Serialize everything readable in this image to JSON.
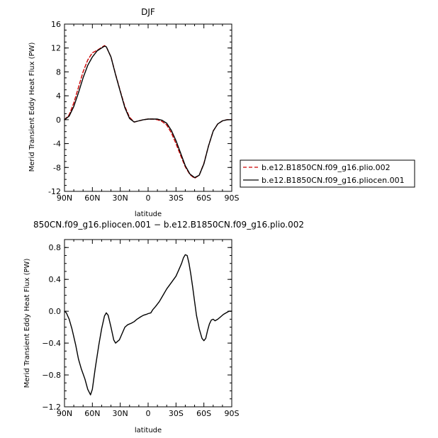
{
  "chart_data": [
    {
      "type": "line",
      "title": "DJF",
      "xlabel": "latitude",
      "ylabel": "Merid Transient Eddy Heat Flux (PW)",
      "xlim": [
        90,
        -90
      ],
      "ylim": [
        -12,
        16
      ],
      "x_ticks": [
        90,
        60,
        30,
        0,
        -30,
        -60,
        -90
      ],
      "x_tick_labels": [
        "90N",
        "60N",
        "30N",
        "0",
        "30S",
        "60S",
        "90S"
      ],
      "y_ticks": [
        -12,
        -8,
        -4,
        0,
        4,
        8,
        12,
        16
      ],
      "y_tick_labels": [
        "-12",
        "-8",
        "-4",
        "0",
        "4",
        "8",
        "12",
        "16"
      ],
      "legend_position": "right",
      "series": [
        {
          "name": "b.e12.B1850CN.f09_g16.plio.002",
          "color": "#cc0000",
          "dash": "dashed",
          "x": [
            90,
            85,
            80,
            75,
            70,
            65,
            60,
            55,
            50,
            47,
            45,
            40,
            35,
            30,
            25,
            20,
            15,
            10,
            5,
            0,
            -5,
            -10,
            -15,
            -20,
            -25,
            -30,
            -35,
            -40,
            -45,
            -50,
            -55,
            -60,
            -65,
            -70,
            -75,
            -80,
            -85,
            -90
          ],
          "y": [
            0,
            0.8,
            2.8,
            5.4,
            8.0,
            10.0,
            11.2,
            11.6,
            12.1,
            12.4,
            12.2,
            10.5,
            7.6,
            4.8,
            2.2,
            0.4,
            -0.4,
            -0.2,
            0.0,
            0.1,
            0.1,
            0.0,
            -0.3,
            -0.9,
            -2.2,
            -4.0,
            -6.0,
            -7.9,
            -9.2,
            -9.8,
            -9.3,
            -7.3,
            -4.4,
            -1.9,
            -0.7,
            -0.2,
            0.0,
            0.0
          ]
        },
        {
          "name": "b.e12.B1850CN.f09_g16.pliocen.001",
          "color": "#000000",
          "dash": "solid",
          "x": [
            90,
            85,
            80,
            75,
            70,
            65,
            60,
            55,
            50,
            47,
            45,
            40,
            35,
            30,
            25,
            20,
            15,
            10,
            5,
            0,
            -5,
            -10,
            -15,
            -20,
            -25,
            -30,
            -35,
            -40,
            -45,
            -50,
            -55,
            -60,
            -65,
            -70,
            -75,
            -80,
            -85,
            -90
          ],
          "y": [
            0,
            0.6,
            2.2,
            4.5,
            7.0,
            9.1,
            10.5,
            11.5,
            12.0,
            12.3,
            12.2,
            10.5,
            7.5,
            4.7,
            2.0,
            0.2,
            -0.4,
            -0.2,
            0.0,
            0.1,
            0.1,
            0.1,
            -0.1,
            -0.6,
            -1.8,
            -3.5,
            -5.6,
            -7.7,
            -9.1,
            -9.7,
            -9.3,
            -7.4,
            -4.4,
            -1.9,
            -0.7,
            -0.2,
            0.0,
            0.0
          ]
        }
      ]
    },
    {
      "type": "line",
      "title": "850CN.f09_g16.pliocen.001 − b.e12.B1850CN.f09_g16.plio.002",
      "xlabel": "latitude",
      "ylabel": "Merid Transient Eddy Heat Flux (PW)",
      "xlim": [
        90,
        -90
      ],
      "ylim": [
        -1.2,
        0.9
      ],
      "x_ticks": [
        90,
        60,
        30,
        0,
        -30,
        -60,
        -90
      ],
      "x_tick_labels": [
        "90N",
        "60N",
        "30N",
        "0",
        "30S",
        "60S",
        "90S"
      ],
      "y_ticks": [
        -1.2,
        -0.8,
        -0.4,
        0.0,
        0.4,
        0.8
      ],
      "y_tick_labels": [
        "−1.2",
        "−0.8",
        "−0.4",
        "0.0",
        "0.4",
        "0.8"
      ],
      "series": [
        {
          "color": "#000000",
          "dash": "solid",
          "x": [
            90,
            88,
            85,
            82,
            78,
            75,
            72,
            68,
            65,
            62,
            60,
            57,
            53,
            50,
            47,
            45,
            43,
            40,
            37,
            35,
            33,
            31,
            28,
            25,
            22,
            18,
            15,
            12,
            8,
            5,
            2,
            0,
            -3,
            -5,
            -8,
            -12,
            -15,
            -20,
            -25,
            -30,
            -33,
            -36,
            -38,
            -40,
            -42,
            -44,
            -46,
            -48,
            -50,
            -52,
            -55,
            -58,
            -60,
            -62,
            -64,
            -66,
            -68,
            -70,
            -72,
            -75,
            -78,
            -81,
            -84,
            -87,
            -90
          ],
          "y": [
            0.0,
            -0.02,
            -0.1,
            -0.22,
            -0.42,
            -0.6,
            -0.72,
            -0.85,
            -0.98,
            -1.05,
            -0.98,
            -0.72,
            -0.42,
            -0.22,
            -0.06,
            -0.02,
            -0.05,
            -0.2,
            -0.36,
            -0.4,
            -0.38,
            -0.36,
            -0.28,
            -0.2,
            -0.17,
            -0.15,
            -0.13,
            -0.1,
            -0.07,
            -0.05,
            -0.04,
            -0.03,
            -0.02,
            0.02,
            0.06,
            0.12,
            0.18,
            0.28,
            0.36,
            0.44,
            0.52,
            0.6,
            0.67,
            0.71,
            0.7,
            0.6,
            0.46,
            0.3,
            0.12,
            -0.05,
            -0.22,
            -0.34,
            -0.37,
            -0.34,
            -0.24,
            -0.16,
            -0.11,
            -0.1,
            -0.12,
            -0.1,
            -0.07,
            -0.04,
            -0.02,
            0.0,
            0.0
          ]
        }
      ]
    }
  ]
}
